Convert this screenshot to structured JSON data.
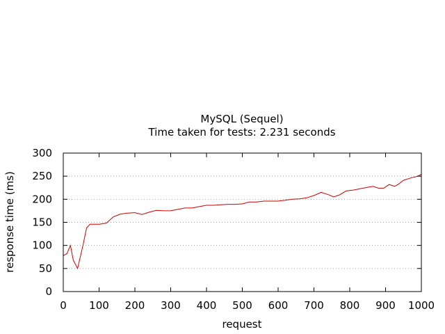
{
  "chart_data": {
    "type": "line",
    "title": "MySQL (Sequel)",
    "subtitle": "Time taken for tests: 2.231 seconds",
    "xlabel": "request",
    "ylabel": "response time (ms)",
    "xlim": [
      0,
      1000
    ],
    "ylim": [
      0,
      300
    ],
    "xticks": [
      0,
      100,
      200,
      300,
      400,
      500,
      600,
      700,
      800,
      900,
      1000
    ],
    "yticks": [
      0,
      50,
      100,
      150,
      200,
      250,
      300
    ],
    "grid": "horizontal dotted",
    "series": [
      {
        "color": "#cc0000",
        "x": [
          0,
          10,
          20,
          28,
          40,
          55,
          65,
          75,
          100,
          120,
          140,
          160,
          180,
          200,
          220,
          240,
          260,
          280,
          300,
          320,
          340,
          360,
          380,
          400,
          420,
          440,
          460,
          480,
          500,
          520,
          540,
          560,
          580,
          600,
          620,
          640,
          660,
          680,
          700,
          720,
          740,
          755,
          770,
          790,
          810,
          830,
          850,
          865,
          880,
          895,
          910,
          925,
          935,
          950,
          970,
          990,
          1000
        ],
        "y": [
          78,
          82,
          100,
          68,
          50,
          100,
          138,
          146,
          146,
          148,
          162,
          168,
          170,
          171,
          167,
          172,
          176,
          175,
          175,
          178,
          181,
          181,
          184,
          187,
          187,
          188,
          189,
          189,
          190,
          194,
          194,
          196,
          196,
          196,
          198,
          200,
          201,
          203,
          208,
          215,
          210,
          205,
          209,
          218,
          220,
          223,
          226,
          228,
          224,
          224,
          232,
          228,
          232,
          241,
          246,
          250,
          254
        ]
      }
    ]
  }
}
